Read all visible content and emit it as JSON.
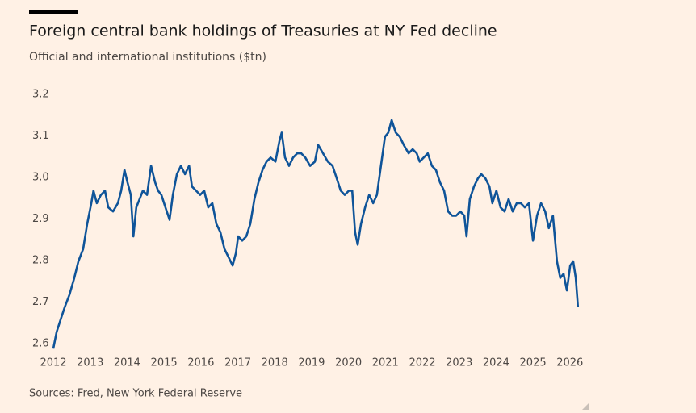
{
  "chart_data": {
    "type": "line",
    "title": "Foreign central bank holdings of Treasuries at NY Fed decline",
    "subtitle": "Official and international institutions ($tn)",
    "source": "Sources: Fred, New York Federal Reserve",
    "color": "#0f5499",
    "x": [
      2012.0,
      2012.09,
      2012.2,
      2012.31,
      2012.44,
      2012.57,
      2012.68,
      2012.81,
      2012.92,
      2013.03,
      2013.09,
      2013.18,
      2013.29,
      2013.4,
      2013.49,
      2013.62,
      2013.75,
      2013.84,
      2013.93,
      2014.01,
      2014.1,
      2014.17,
      2014.25,
      2014.34,
      2014.43,
      2014.54,
      2014.65,
      2014.76,
      2014.84,
      2014.93,
      2015.04,
      2015.15,
      2015.24,
      2015.35,
      2015.46,
      2015.57,
      2015.68,
      2015.76,
      2015.87,
      2015.98,
      2016.09,
      2016.2,
      2016.31,
      2016.42,
      2016.53,
      2016.64,
      2016.75,
      2016.86,
      2016.95,
      2017.01,
      2017.12,
      2017.23,
      2017.34,
      2017.45,
      2017.56,
      2017.67,
      2017.78,
      2017.89,
      2018.02,
      2018.13,
      2018.19,
      2018.28,
      2018.39,
      2018.5,
      2018.61,
      2018.72,
      2018.83,
      2018.96,
      2019.09,
      2019.18,
      2019.31,
      2019.44,
      2019.57,
      2019.68,
      2019.79,
      2019.9,
      2020.01,
      2020.1,
      2020.18,
      2020.25,
      2020.34,
      2020.45,
      2020.56,
      2020.67,
      2020.77,
      2020.88,
      2020.99,
      2021.08,
      2021.17,
      2021.28,
      2021.39,
      2021.5,
      2021.63,
      2021.74,
      2021.85,
      2021.93,
      2022.04,
      2022.15,
      2022.26,
      2022.37,
      2022.48,
      2022.59,
      2022.7,
      2022.81,
      2022.92,
      2023.03,
      2023.14,
      2023.2,
      2023.29,
      2023.4,
      2023.51,
      2023.6,
      2023.71,
      2023.82,
      2023.9,
      2024.01,
      2024.12,
      2024.23,
      2024.34,
      2024.45,
      2024.56,
      2024.67,
      2024.78,
      2024.89,
      2025.0,
      2025.11,
      2025.22,
      2025.33,
      2025.43,
      2025.54,
      2025.65,
      2025.74,
      2025.83,
      2025.92,
      2026.01,
      2026.09,
      2026.16,
      2026.22
    ],
    "values": [
      2.59,
      2.63,
      2.66,
      2.69,
      2.72,
      2.76,
      2.8,
      2.83,
      2.89,
      2.94,
      2.97,
      2.94,
      2.96,
      2.97,
      2.93,
      2.92,
      2.94,
      2.97,
      3.02,
      2.99,
      2.96,
      2.86,
      2.93,
      2.95,
      2.97,
      2.96,
      3.03,
      2.99,
      2.97,
      2.96,
      2.93,
      2.9,
      2.96,
      3.01,
      3.03,
      3.01,
      3.03,
      2.98,
      2.97,
      2.96,
      2.97,
      2.93,
      2.94,
      2.89,
      2.87,
      2.83,
      2.81,
      2.79,
      2.82,
      2.86,
      2.85,
      2.86,
      2.89,
      2.95,
      2.99,
      3.02,
      3.04,
      3.05,
      3.04,
      3.09,
      3.11,
      3.05,
      3.03,
      3.05,
      3.06,
      3.06,
      3.05,
      3.03,
      3.04,
      3.08,
      3.06,
      3.04,
      3.03,
      3.0,
      2.97,
      2.96,
      2.97,
      2.97,
      2.87,
      2.84,
      2.89,
      2.93,
      2.96,
      2.94,
      2.96,
      3.03,
      3.1,
      3.11,
      3.14,
      3.11,
      3.1,
      3.08,
      3.06,
      3.07,
      3.06,
      3.04,
      3.05,
      3.06,
      3.03,
      3.02,
      2.99,
      2.97,
      2.92,
      2.91,
      2.91,
      2.92,
      2.91,
      2.86,
      2.95,
      2.98,
      3.0,
      3.01,
      3.0,
      2.98,
      2.94,
      2.97,
      2.93,
      2.92,
      2.95,
      2.92,
      2.94,
      2.94,
      2.93,
      2.94,
      2.85,
      2.91,
      2.94,
      2.92,
      2.88,
      2.91,
      2.8,
      2.76,
      2.77,
      2.73,
      2.79,
      2.8,
      2.76,
      2.69
    ],
    "xlim": [
      2012,
      2026.3
    ],
    "xticks": [
      2012,
      2013,
      2014,
      2015,
      2016,
      2017,
      2018,
      2019,
      2020,
      2021,
      2022,
      2023,
      2024,
      2025,
      2026
    ],
    "ylim": [
      2.58,
      3.22
    ],
    "yticks": [
      2.6,
      2.7,
      2.8,
      2.9,
      {
        "value": 3,
        "label": "3.0"
      },
      3.1,
      3.2
    ],
    "grid": false
  }
}
